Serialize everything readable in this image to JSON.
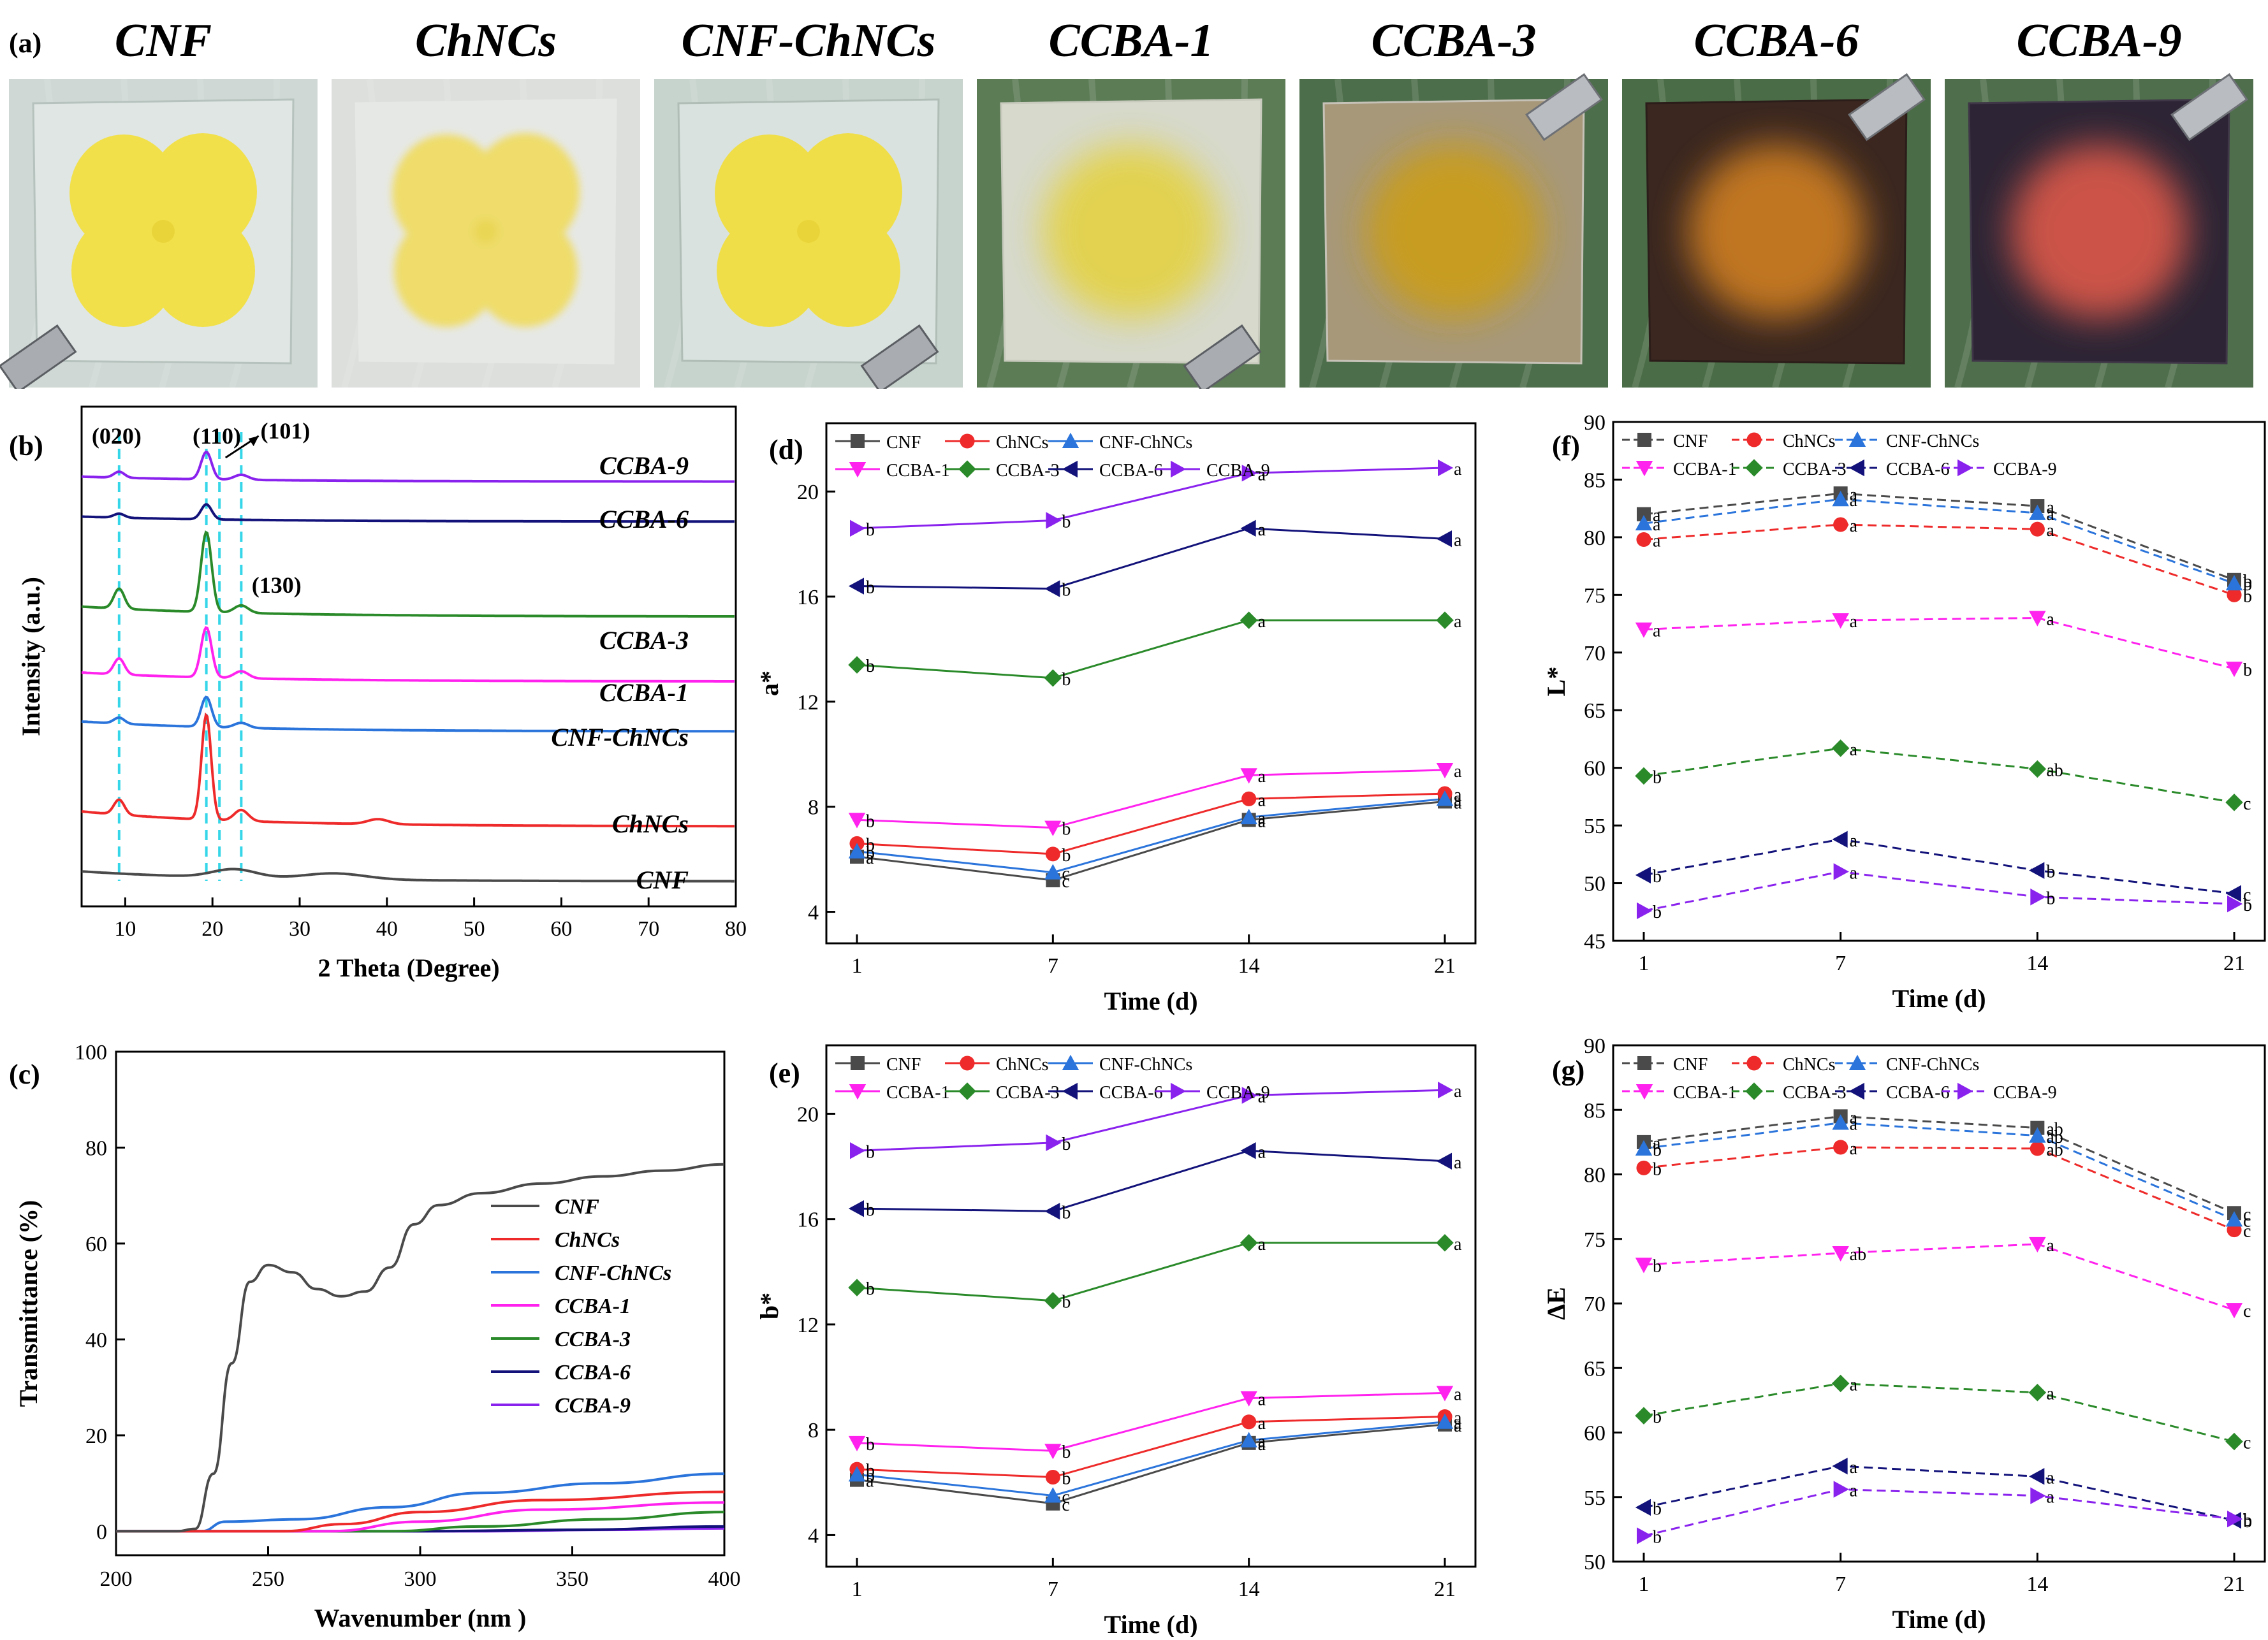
{
  "panel_a": {
    "label": "(a)",
    "samples": [
      {
        "name": "CNF",
        "bg": "#cfd8d4",
        "film": "#dfe6e3",
        "film_edge": "#b6c2bd",
        "blob": "#f2e04a",
        "blob_kind": "flower"
      },
      {
        "name": "ChNCs",
        "bg": "#dcdfdc",
        "film": "#e6e8e5",
        "film_edge": "#e6e8e5",
        "blob": "#f1da55",
        "blob_kind": "flower_blur"
      },
      {
        "name": "CNF-ChNCs",
        "bg": "#c7d3cd",
        "film": "#d9e2de",
        "film_edge": "#b0bdb7",
        "blob": "#f0de48",
        "blob_kind": "flower"
      },
      {
        "name": "CCBA-1",
        "bg": "#5c7c56",
        "film": "#d6d9cc",
        "film_edge": "#c7cabd",
        "blob": "#e3d24a",
        "blob_kind": "glow"
      },
      {
        "name": "CCBA-3",
        "bg": "#4d6e4a",
        "film": "#a7987a",
        "film_edge": "#c6c2b8",
        "blob": "#c99d1f",
        "blob_kind": "glow"
      },
      {
        "name": "CCBA-6",
        "bg": "#4a6c46",
        "film": "#3b2720",
        "film_edge": "#2b1d19",
        "blob": "#c87a24",
        "blob_kind": "glow"
      },
      {
        "name": "CCBA-9",
        "bg": "#4f6f4c",
        "film": "#2d2535",
        "film_edge": "#3f3747",
        "blob": "#d4574a",
        "blob_kind": "glow"
      }
    ]
  },
  "series_colors": {
    "CNF": "#4a4a4a",
    "ChNCs": "#ee2a2a",
    "CNF-ChNCs": "#2a74db",
    "CCBA-1": "#ff22ee",
    "CCBA-3": "#2a8a2a",
    "CCBA-6": "#12127a",
    "CCBA-9": "#8a22ee"
  },
  "chart_data": [
    {
      "id": "b",
      "panel_label": "(b)",
      "type": "line",
      "xlabel": "2 Theta (Degree)",
      "ylabel": "Intensity (a.u.)",
      "xlim": [
        5,
        80
      ],
      "xticks": [
        10,
        20,
        30,
        40,
        50,
        60,
        70,
        80
      ],
      "peak_labels": [
        "(020)",
        "(110)",
        "(101)",
        "(130)"
      ],
      "peak_positions": [
        9.3,
        19.3,
        20.8,
        23.3
      ],
      "series": [
        {
          "name": "CNF",
          "baseline": 0.05,
          "peaks": [
            [
              22.5,
              0.017,
              2.5
            ]
          ],
          "tail": 0.02
        },
        {
          "name": "ChNCs",
          "baseline": 0.16,
          "peaks": [
            [
              9.3,
              0.03,
              0.6
            ],
            [
              19.3,
              0.21,
              0.55
            ],
            [
              23.3,
              0.022,
              0.8
            ],
            [
              39,
              0.01,
              1.2
            ]
          ],
          "tail": 0.03
        },
        {
          "name": "CNF-ChNCs",
          "baseline": 0.35,
          "peaks": [
            [
              9.3,
              0.012,
              0.6
            ],
            [
              19.3,
              0.06,
              0.6
            ],
            [
              23.3,
              0.01,
              0.8
            ]
          ],
          "tail": 0.02
        },
        {
          "name": "CCBA-1",
          "baseline": 0.45,
          "peaks": [
            [
              9.3,
              0.032,
              0.6
            ],
            [
              19.3,
              0.1,
              0.6
            ],
            [
              23.3,
              0.014,
              0.8
            ]
          ],
          "tail": 0.018
        },
        {
          "name": "CCBA-3",
          "baseline": 0.58,
          "peaks": [
            [
              9.3,
              0.04,
              0.6
            ],
            [
              19.3,
              0.16,
              0.6
            ],
            [
              23.3,
              0.015,
              0.8
            ]
          ],
          "tail": 0.02
        },
        {
          "name": "CCBA-6",
          "baseline": 0.77,
          "peaks": [
            [
              9.3,
              0.008,
              0.6
            ],
            [
              19.3,
              0.03,
              0.6
            ]
          ],
          "tail": 0.01
        },
        {
          "name": "CCBA-9",
          "baseline": 0.85,
          "peaks": [
            [
              9.3,
              0.012,
              0.6
            ],
            [
              19.3,
              0.055,
              0.6
            ],
            [
              23.3,
              0.01,
              0.8
            ]
          ],
          "tail": 0.01
        }
      ],
      "series_labels": [
        "CCBA-9",
        "CCBA-6",
        "CCBA-3",
        "CCBA-1",
        "CNF-ChNCs",
        "ChNCs",
        "CNF"
      ]
    },
    {
      "id": "c",
      "panel_label": "(c)",
      "type": "line",
      "xlabel": "Wavenumber (nm )",
      "ylabel": "Transmittance (%)",
      "xlim": [
        200,
        400
      ],
      "ylim": [
        -5,
        100
      ],
      "xticks": [
        200,
        250,
        300,
        350,
        400
      ],
      "yticks": [
        0,
        20,
        40,
        60,
        80,
        100
      ],
      "series": [
        {
          "name": "CNF",
          "points": [
            [
              200,
              0
            ],
            [
              220,
              0
            ],
            [
              226,
              0.5
            ],
            [
              232,
              12
            ],
            [
              238,
              35
            ],
            [
              244,
              52
            ],
            [
              250,
              55.5
            ],
            [
              258,
              54
            ],
            [
              266,
              50.5
            ],
            [
              274,
              49
            ],
            [
              282,
              50
            ],
            [
              290,
              55
            ],
            [
              298,
              64
            ],
            [
              306,
              68
            ],
            [
              320,
              70.5
            ],
            [
              340,
              72.5
            ],
            [
              360,
              74
            ],
            [
              380,
              75.2
            ],
            [
              400,
              76.5
            ]
          ]
        },
        {
          "name": "ChNCs",
          "points": [
            [
              200,
              0
            ],
            [
              255,
              0
            ],
            [
              275,
              1.5
            ],
            [
              300,
              4
            ],
            [
              340,
              6.5
            ],
            [
              400,
              8.2
            ]
          ]
        },
        {
          "name": "CNF-ChNCs",
          "points": [
            [
              200,
              0
            ],
            [
              228,
              0
            ],
            [
              236,
              2
            ],
            [
              260,
              2.5
            ],
            [
              290,
              5
            ],
            [
              320,
              8
            ],
            [
              360,
              10
            ],
            [
              400,
              12
            ]
          ]
        },
        {
          "name": "CCBA-1",
          "points": [
            [
              200,
              0
            ],
            [
              270,
              0
            ],
            [
              300,
              2
            ],
            [
              340,
              4.5
            ],
            [
              400,
              6
            ]
          ]
        },
        {
          "name": "CCBA-3",
          "points": [
            [
              200,
              0
            ],
            [
              290,
              0
            ],
            [
              320,
              1
            ],
            [
              360,
              2.5
            ],
            [
              400,
              4
            ]
          ]
        },
        {
          "name": "CCBA-6",
          "points": [
            [
              200,
              0
            ],
            [
              300,
              0
            ],
            [
              350,
              0.3
            ],
            [
              400,
              1
            ]
          ]
        },
        {
          "name": "CCBA-9",
          "points": [
            [
              200,
              0
            ],
            [
              320,
              0
            ],
            [
              360,
              0.3
            ],
            [
              400,
              0.6
            ]
          ]
        }
      ],
      "legend": [
        "CNF",
        "ChNCs",
        "CNF-ChNCs",
        "CCBA-1",
        "CCBA-3",
        "CCBA-6",
        "CCBA-9"
      ]
    },
    {
      "id": "d",
      "panel_label": "(d)",
      "type": "line",
      "xlabel": "Time (d)",
      "ylabel": "a*",
      "ylim": [
        2.8,
        22.6
      ],
      "yticks": [
        4,
        8,
        12,
        16,
        20
      ],
      "categories": [
        "1",
        "7",
        "14",
        "21"
      ],
      "series": [
        {
          "name": "CNF",
          "values": [
            6.1,
            5.2,
            7.5,
            8.2
          ],
          "letters": [
            "a",
            "c",
            "a",
            "a"
          ]
        },
        {
          "name": "ChNCs",
          "values": [
            6.6,
            6.2,
            8.3,
            8.5
          ],
          "letters": [
            "b",
            "b",
            "a",
            "a"
          ]
        },
        {
          "name": "CNF-ChNCs",
          "values": [
            6.3,
            5.5,
            7.6,
            8.3
          ],
          "letters": [
            "b",
            "c",
            "a",
            "a"
          ]
        },
        {
          "name": "CCBA-1",
          "values": [
            7.5,
            7.2,
            9.2,
            9.4
          ],
          "letters": [
            "b",
            "b",
            "a",
            "a"
          ]
        },
        {
          "name": "CCBA-3",
          "values": [
            13.4,
            12.9,
            15.1,
            15.1
          ],
          "letters": [
            "b",
            "b",
            "a",
            "a"
          ]
        },
        {
          "name": "CCBA-6",
          "values": [
            16.4,
            16.3,
            18.6,
            18.2
          ],
          "letters": [
            "b",
            "b",
            "a",
            "a"
          ]
        },
        {
          "name": "CCBA-9",
          "values": [
            18.6,
            18.9,
            20.7,
            20.9
          ],
          "letters": [
            "b",
            "b",
            "a",
            "a"
          ]
        }
      ],
      "legend": [
        "CNF",
        "ChNCs",
        "CNF-ChNCs",
        "CCBA-1",
        "CCBA-3",
        "CCBA-6",
        "CCBA-9"
      ]
    },
    {
      "id": "e",
      "panel_label": "(e)",
      "type": "line",
      "xlabel": "Time (d)",
      "ylabel": "b*",
      "ylim": [
        2.8,
        22.6
      ],
      "yticks": [
        4,
        8,
        12,
        16,
        20
      ],
      "categories": [
        "1",
        "7",
        "14",
        "21"
      ],
      "series": [
        {
          "name": "CNF",
          "values": [
            6.1,
            5.2,
            7.5,
            8.2
          ],
          "letters": [
            "a",
            "c",
            "a",
            "a"
          ]
        },
        {
          "name": "ChNCs",
          "values": [
            6.5,
            6.2,
            8.3,
            8.5
          ],
          "letters": [
            "b",
            "b",
            "a",
            "a"
          ]
        },
        {
          "name": "CNF-ChNCs",
          "values": [
            6.3,
            5.5,
            7.6,
            8.3
          ],
          "letters": [
            "b",
            "c",
            "a",
            "a"
          ]
        },
        {
          "name": "CCBA-1",
          "values": [
            7.5,
            7.2,
            9.2,
            9.4
          ],
          "letters": [
            "b",
            "b",
            "a",
            "a"
          ]
        },
        {
          "name": "CCBA-3",
          "values": [
            13.4,
            12.9,
            15.1,
            15.1
          ],
          "letters": [
            "b",
            "b",
            "a",
            "a"
          ]
        },
        {
          "name": "CCBA-6",
          "values": [
            16.4,
            16.3,
            18.6,
            18.2
          ],
          "letters": [
            "b",
            "b",
            "a",
            "a"
          ]
        },
        {
          "name": "CCBA-9",
          "values": [
            18.6,
            18.9,
            20.7,
            20.9
          ],
          "letters": [
            "b",
            "b",
            "a",
            "a"
          ]
        }
      ],
      "legend": [
        "CNF",
        "ChNCs",
        "CNF-ChNCs",
        "CCBA-1",
        "CCBA-3",
        "CCBA-6",
        "CCBA-9"
      ]
    },
    {
      "id": "f",
      "panel_label": "(f)",
      "type": "line",
      "xlabel": "Time (d)",
      "ylabel": "L*",
      "ylim": [
        45,
        90
      ],
      "yticks": [
        45,
        50,
        55,
        60,
        65,
        70,
        75,
        80,
        85,
        90
      ],
      "categories": [
        "1",
        "7",
        "14",
        "21"
      ],
      "series": [
        {
          "name": "CNF",
          "values": [
            82,
            83.8,
            82.7,
            76.3
          ],
          "letters": [
            "a",
            "a",
            "a",
            "b"
          ]
        },
        {
          "name": "ChNCs",
          "values": [
            79.8,
            81.1,
            80.7,
            75
          ],
          "letters": [
            "a",
            "a",
            "a",
            "b"
          ]
        },
        {
          "name": "CNF-ChNCs",
          "values": [
            81.2,
            83.3,
            82.1,
            76
          ],
          "letters": [
            "a",
            "a",
            "a",
            "b"
          ]
        },
        {
          "name": "CCBA-1",
          "values": [
            72,
            72.8,
            73,
            68.6
          ],
          "letters": [
            "a",
            "a",
            "a",
            "b"
          ]
        },
        {
          "name": "CCBA-3",
          "values": [
            59.3,
            61.7,
            59.9,
            57
          ],
          "letters": [
            "b",
            "a",
            "ab",
            "c"
          ]
        },
        {
          "name": "CCBA-6",
          "values": [
            50.7,
            53.8,
            51.1,
            49.1
          ],
          "letters": [
            "b",
            "a",
            "b",
            "c"
          ]
        },
        {
          "name": "CCBA-9",
          "values": [
            47.6,
            51,
            48.8,
            48.2
          ],
          "letters": [
            "b",
            "a",
            "b",
            "b"
          ]
        }
      ],
      "legend": [
        "CNF",
        "ChNCs",
        "CNF-ChNCs",
        "CCBA-1",
        "CCBA-3",
        "CCBA-6",
        "CCBA-9"
      ]
    },
    {
      "id": "g",
      "panel_label": "(g)",
      "type": "line",
      "xlabel": "Time (d)",
      "ylabel": "ΔE",
      "ylim": [
        50,
        90
      ],
      "yticks": [
        50,
        55,
        60,
        65,
        70,
        75,
        80,
        85,
        90
      ],
      "categories": [
        "1",
        "7",
        "14",
        "21"
      ],
      "series": [
        {
          "name": "CNF",
          "values": [
            82.5,
            84.5,
            83.6,
            77
          ],
          "letters": [
            "a",
            "a",
            "ab",
            "c"
          ]
        },
        {
          "name": "ChNCs",
          "values": [
            80.5,
            82.1,
            82,
            75.7
          ],
          "letters": [
            "b",
            "a",
            "ab",
            "c"
          ]
        },
        {
          "name": "CNF-ChNCs",
          "values": [
            82,
            84,
            83,
            76.5
          ],
          "letters": [
            "b",
            "a",
            "ab",
            "c"
          ]
        },
        {
          "name": "CCBA-1",
          "values": [
            73,
            73.9,
            74.6,
            69.5
          ],
          "letters": [
            "b",
            "ab",
            "a",
            "c"
          ]
        },
        {
          "name": "CCBA-3",
          "values": [
            61.3,
            63.8,
            63.1,
            59.3
          ],
          "letters": [
            "b",
            "a",
            "a",
            "c"
          ]
        },
        {
          "name": "CCBA-6",
          "values": [
            54.2,
            57.4,
            56.6,
            53.2
          ],
          "letters": [
            "b",
            "a",
            "a",
            "b"
          ]
        },
        {
          "name": "CCBA-9",
          "values": [
            52,
            55.6,
            55.1,
            53.3
          ],
          "letters": [
            "b",
            "a",
            "a",
            "b"
          ]
        }
      ],
      "legend": [
        "CNF",
        "ChNCs",
        "CNF-ChNCs",
        "CCBA-1",
        "CCBA-3",
        "CCBA-6",
        "CCBA-9"
      ]
    }
  ]
}
